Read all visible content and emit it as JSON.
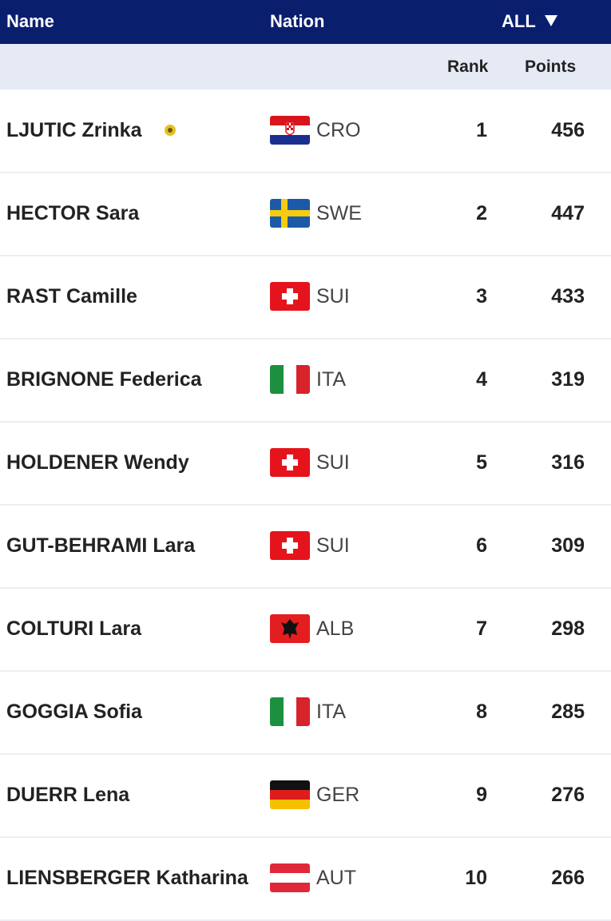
{
  "header": {
    "name": "Name",
    "nation": "Nation",
    "filter": "ALL"
  },
  "subheader": {
    "rank": "Rank",
    "points": "Points"
  },
  "table": {
    "rows": [
      {
        "name": "LJUTIC Zrinka",
        "nation": "CRO",
        "rank": 1,
        "points": 456
      },
      {
        "name": "HECTOR Sara",
        "nation": "SWE",
        "rank": 2,
        "points": 447
      },
      {
        "name": "RAST Camille",
        "nation": "SUI",
        "rank": 3,
        "points": 433
      },
      {
        "name": "BRIGNONE Federica",
        "nation": "ITA",
        "rank": 4,
        "points": 319
      },
      {
        "name": "HOLDENER Wendy",
        "nation": "SUI",
        "rank": 5,
        "points": 316
      },
      {
        "name": "GUT-BEHRAMI Lara",
        "nation": "SUI",
        "rank": 6,
        "points": 309
      },
      {
        "name": "COLTURI Lara",
        "nation": "ALB",
        "rank": 7,
        "points": 298
      },
      {
        "name": "GOGGIA Sofia",
        "nation": "ITA",
        "rank": 8,
        "points": 285
      },
      {
        "name": "DUERR Lena",
        "nation": "GER",
        "rank": 9,
        "points": 276
      },
      {
        "name": "LIENSBERGER Katharina",
        "nation": "AUT",
        "rank": 10,
        "points": 266
      }
    ]
  }
}
